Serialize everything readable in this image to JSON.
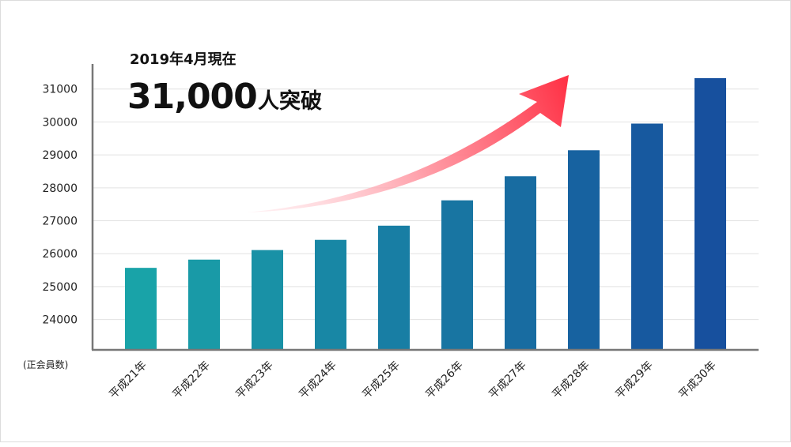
{
  "chart_data": {
    "type": "bar",
    "categories": [
      "平成21年",
      "平成22年",
      "平成23年",
      "平成24年",
      "平成25年",
      "平成26年",
      "平成27年",
      "平成28年",
      "平成29年",
      "平成30年"
    ],
    "values": [
      25570,
      25820,
      26110,
      26420,
      26850,
      27620,
      28350,
      29140,
      29950,
      31330
    ],
    "ylabel": "(正会員数)",
    "yticks": [
      24000,
      25000,
      26000,
      27000,
      28000,
      29000,
      30000,
      31000
    ],
    "ylim": [
      23080,
      32000
    ],
    "grid": true,
    "colors": {
      "bar_start": "#19a3a8",
      "bar_end": "#17509e",
      "arrow_start": "#ffd6dc",
      "arrow_end": "#ff3347",
      "grid": "#e2e2e2",
      "axis": "#777777"
    }
  },
  "headline": {
    "date_label": "2019年4月現在",
    "count": "31,000",
    "suffix": "人突破"
  }
}
